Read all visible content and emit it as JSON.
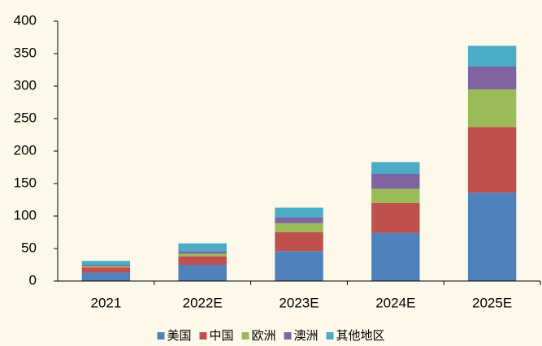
{
  "chart_data": {
    "type": "stacked_bar",
    "categories": [
      "2021",
      "2022E",
      "2023E",
      "2024E",
      "2025E"
    ],
    "series": [
      {
        "name": "美国",
        "color": "#4f81bd",
        "values": [
          13,
          25,
          46,
          74,
          136
        ]
      },
      {
        "name": "中国",
        "color": "#c0504d",
        "values": [
          8,
          13,
          29,
          46,
          101
        ]
      },
      {
        "name": "欧洲",
        "color": "#9bbb59",
        "values": [
          2,
          4,
          14,
          22,
          58
        ]
      },
      {
        "name": "澳洲",
        "color": "#8064a2",
        "values": [
          2,
          4,
          9,
          23,
          35
        ]
      },
      {
        "name": "其他地区",
        "color": "#4bacc6",
        "values": [
          6,
          12,
          15,
          18,
          32
        ]
      }
    ],
    "ylim": [
      0,
      400
    ],
    "yticks": [
      0,
      50,
      100,
      150,
      200,
      250,
      300,
      350,
      400
    ],
    "grid": false,
    "legend": "bottom"
  }
}
